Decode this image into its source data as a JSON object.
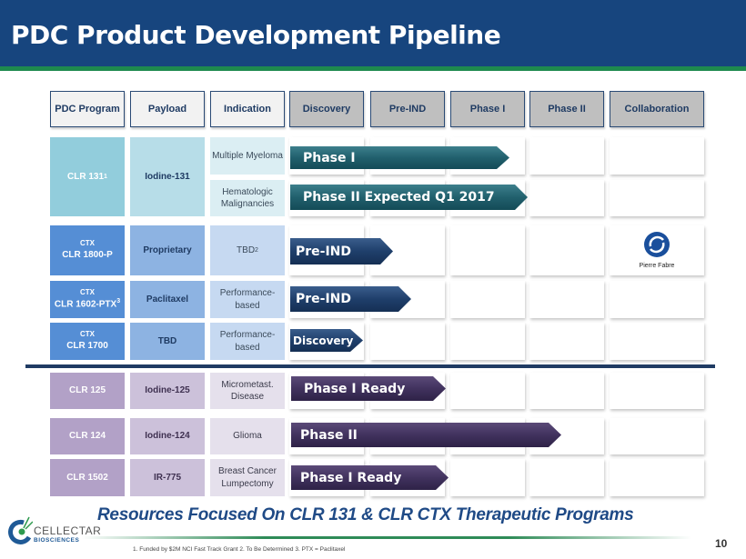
{
  "title": "PDC Product Development Pipeline",
  "headers": [
    "PDC Program",
    "Payload",
    "Indication",
    "Discovery",
    "Pre-IND",
    "Phase I",
    "Phase II",
    "Collaboration"
  ],
  "programs": {
    "clr131": {
      "name": "CLR 131",
      "sup": "1",
      "payload": "Iodine-131",
      "ind1": "Multiple Myeloma",
      "stage1": "Phase I",
      "ind2": "Hematologic Malignancies",
      "stage2": "Phase II Expected Q1 2017"
    },
    "clr1800": {
      "prefix": "CTX",
      "name": "CLR 1800-P",
      "payload": "Proprietary",
      "indication": "TBD",
      "ind_sup": "2",
      "stage": "Pre-IND",
      "collaborator": "Pierre Fabre"
    },
    "clr1602": {
      "prefix": "CTX",
      "name": "CLR 1602-PTX",
      "sup": "3",
      "payload": "Paclitaxel",
      "indication": "Performance-based",
      "stage": "Pre-IND"
    },
    "clr1700": {
      "prefix": "CTX",
      "name": "CLR 1700",
      "payload": "TBD",
      "indication": "Performance-based",
      "stage": "Discovery"
    },
    "clr125": {
      "name": "CLR 125",
      "payload": "Iodine-125",
      "indication": "Micrometast. Disease",
      "stage": "Phase I Ready"
    },
    "clr124": {
      "name": "CLR 124",
      "payload": "Iodine-124",
      "indication": "Glioma",
      "stage": "Phase II"
    },
    "clr1502": {
      "name": "CLR 1502",
      "payload": "IR-775",
      "indication": "Breast Cancer Lumpectomy",
      "stage": "Phase I Ready"
    }
  },
  "tagline": "Resources Focused On CLR 131 & CLR CTX Therapeutic Programs",
  "logo": {
    "name": "CELLECTAR",
    "sub": "BIOSCIENCES"
  },
  "footnote": "1. Funded by $2M NCI Fast Track Grant   2. To Be Determined   3. PTX = Paclitaxel",
  "page_number": "10"
}
